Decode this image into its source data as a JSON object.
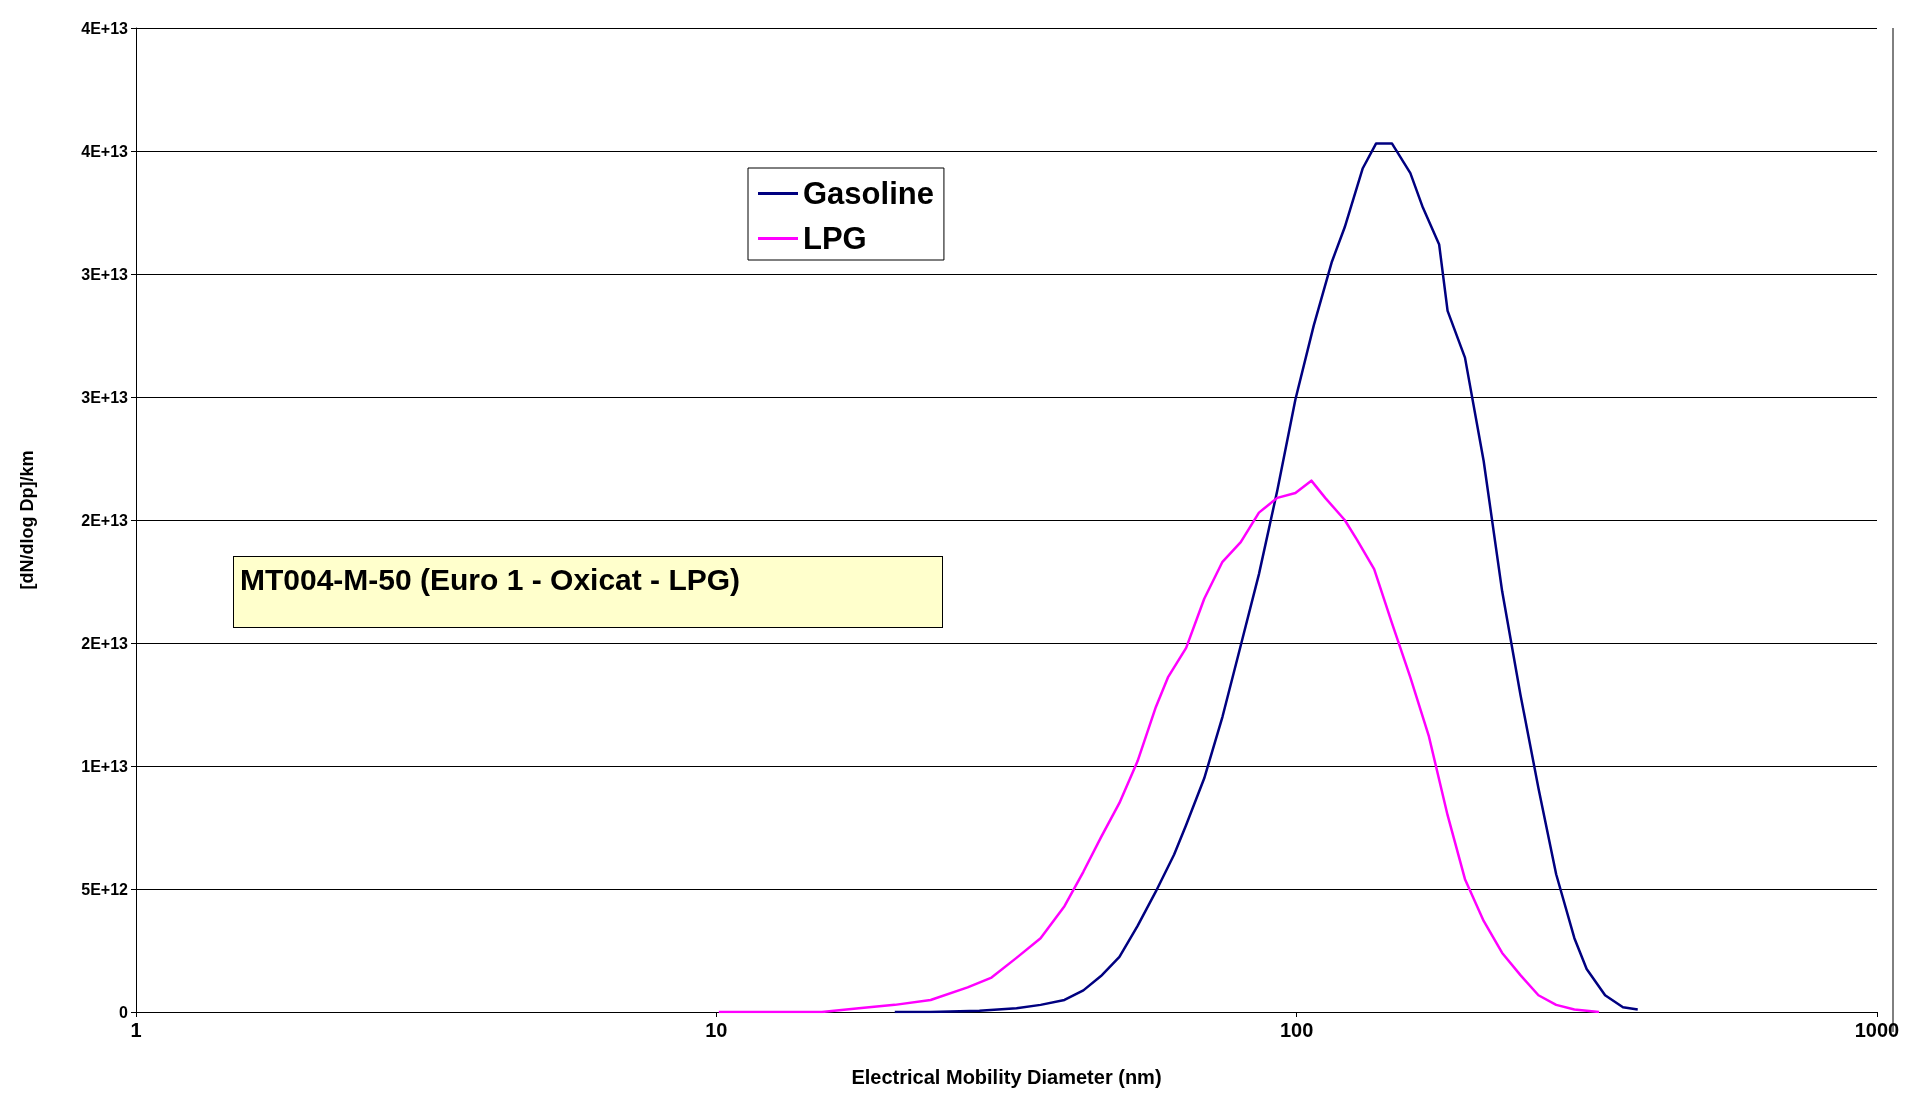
{
  "chart_data": {
    "type": "line",
    "xlabel": "Electrical Mobility Diameter (nm)",
    "ylabel": "[dN/dlog Dp]/km",
    "log": "x",
    "grid": "y",
    "legend": "top",
    "marker": "none",
    "line_style": "solid",
    "xlim": [
      1,
      1000
    ],
    "xticks": [
      1,
      10,
      100,
      1000
    ],
    "ylim": [
      0,
      40000000000000.0
    ],
    "yticks": [
      0,
      {
        "value": 5000000000000.0,
        "label": "5E+12"
      },
      {
        "value": 10000000000000.0,
        "label": "1E+13"
      },
      {
        "value": 15000000000000.0,
        "label": "2E+13"
      },
      {
        "value": 20000000000000.0,
        "label": "2E+13"
      },
      {
        "value": 25000000000000.0,
        "label": "3E+13"
      },
      {
        "value": 30000000000000.0,
        "label": "3E+13"
      },
      {
        "value": 35000000000000.0,
        "label": "4E+13"
      },
      {
        "value": 40000000000000.0,
        "label": "4E+13"
      }
    ],
    "annotations": [
      "MT004-M-50 (Euro 1 - Oxicat - LPG)"
    ],
    "series": [
      {
        "name": "Gasoline",
        "color": "#000080",
        "x": [
          20.3,
          23.4,
          28.4,
          32.9,
          36.2,
          39.8,
          42.9,
          46.0,
          49.5,
          53.2,
          57.2,
          61.5,
          64.5,
          69.3,
          74.5,
          80.1,
          86.1,
          92.6,
          99.5,
          107,
          115,
          121,
          130,
          137,
          146,
          157,
          165,
          176,
          182,
          195,
          210,
          226,
          243,
          261,
          280,
          301,
          316,
          340,
          365,
          387
        ],
        "values": [
          0,
          0,
          50000000000.0,
          150000000000.0,
          290000000000.0,
          490000000000.0,
          880000000000.0,
          1460000000000.0,
          2240000000000.0,
          3500000000000.0,
          4900000000000.0,
          6400000000000.0,
          7600000000000.0,
          9500000000000.0,
          12000000000000.0,
          14900000000000.0,
          17800000000000.0,
          21200000000000.0,
          24900000000000.0,
          27900000000000.0,
          30500000000000.0,
          31900000000000.0,
          34300000000000.0,
          35300000000000.0,
          35300000000000.0,
          34100000000000.0,
          32700000000000.0,
          31200000000000.0,
          28500000000000.0,
          26600000000000.0,
          22400000000000.0,
          17100000000000.0,
          12900000000000.0,
          9100000000000.0,
          5600000000000.0,
          3000000000000.0,
          1750000000000.0,
          680000000000.0,
          190000000000.0,
          100000000000.0
        ]
      },
      {
        "name": "LPG",
        "color": "#ff00ff",
        "x": [
          10.1,
          15.2,
          17.6,
          20.3,
          23.4,
          27.1,
          29.8,
          32.9,
          36.2,
          39.8,
          42.9,
          46.0,
          49.5,
          53.2,
          57.2,
          60.0,
          64.5,
          69.3,
          74.5,
          80.1,
          86.1,
          92.6,
          99.5,
          106,
          112,
          121,
          127,
          136,
          146,
          157,
          169,
          182,
          195,
          210,
          226,
          243,
          261,
          280,
          301,
          332
        ],
        "values": [
          0,
          0,
          150000000000.0,
          290000000000.0,
          490000000000.0,
          1000000000000.0,
          1400000000000.0,
          2200000000000.0,
          3000000000000.0,
          4300000000000.0,
          5700000000000.0,
          7100000000000.0,
          8500000000000.0,
          10200000000000.0,
          12400000000000.0,
          13600000000000.0,
          14800000000000.0,
          16800000000000.0,
          18300000000000.0,
          19100000000000.0,
          20300000000000.0,
          20900000000000.0,
          21100000000000.0,
          21600000000000.0,
          20900000000000.0,
          20000000000000.0,
          19200000000000.0,
          18000000000000.0,
          15800000000000.0,
          13600000000000.0,
          11200000000000.0,
          8000000000000.0,
          5400000000000.0,
          3700000000000.0,
          2400000000000.0,
          1500000000000.0,
          680000000000.0,
          290000000000.0,
          100000000000.0,
          0
        ]
      }
    ]
  }
}
